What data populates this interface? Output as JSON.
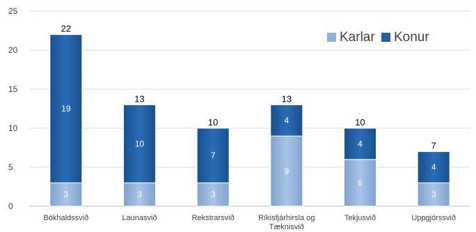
{
  "chart_data": {
    "type": "bar",
    "stacked": true,
    "categories": [
      "Bókhaldssvið",
      "Launasvið",
      "Rekstrarsvið",
      "Ríkisfjárhirsla og Tæknisvið",
      "Tekjusvið",
      "Uppgjörssvið"
    ],
    "category_lines": [
      [
        "Bókhaldssvið"
      ],
      [
        "Launasvið"
      ],
      [
        "Rekstrarsvið"
      ],
      [
        "Ríkisfjárhirsla og",
        "Tæknisvið"
      ],
      [
        "Tekjusvið"
      ],
      [
        "Uppgjörssvið"
      ]
    ],
    "series": [
      {
        "name": "Karlar",
        "values": [
          3,
          3,
          3,
          9,
          6,
          3
        ],
        "color": "#8EB0DA"
      },
      {
        "name": "Konur",
        "values": [
          19,
          10,
          7,
          4,
          4,
          4
        ],
        "color": "#1F5FA6"
      }
    ],
    "totals": [
      22,
      13,
      10,
      13,
      10,
      7
    ],
    "ylim": [
      0,
      25
    ],
    "yticks": [
      0,
      5,
      10,
      15,
      20,
      25
    ],
    "grid": true,
    "legend": "top-right",
    "title": "",
    "xlabel": "",
    "ylabel": ""
  }
}
